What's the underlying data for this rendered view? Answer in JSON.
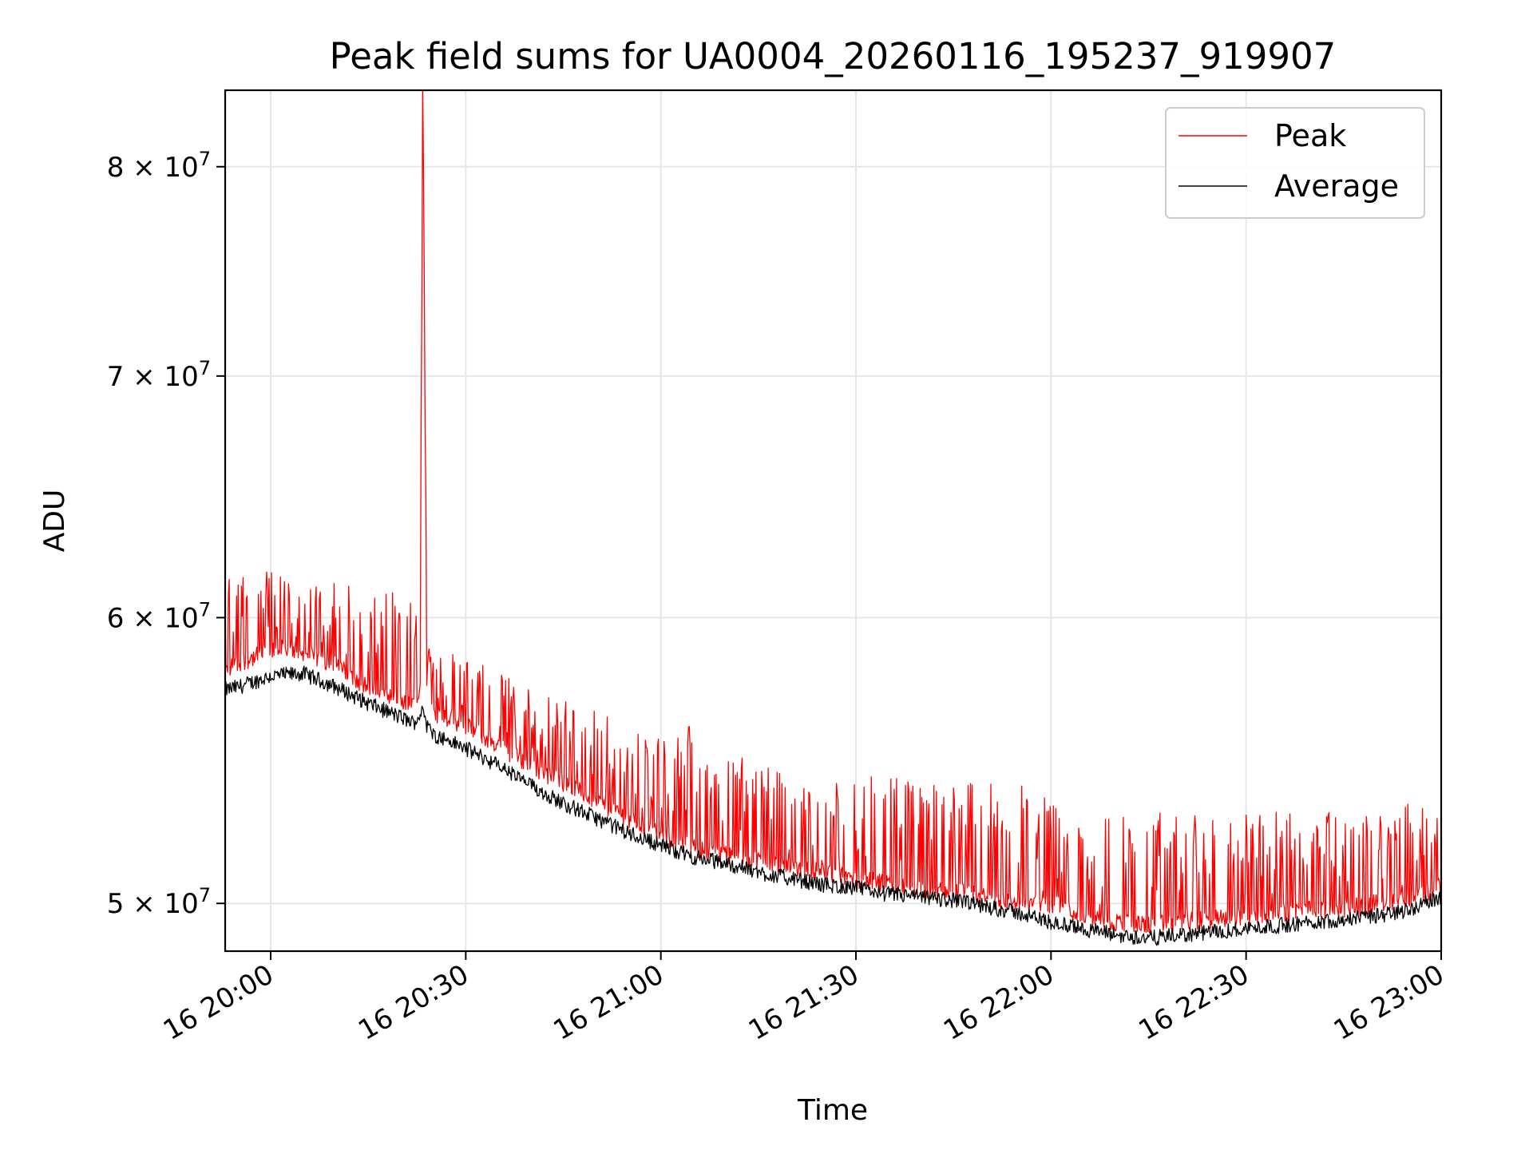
{
  "chart_data": {
    "type": "line",
    "title": "Peak field sums for UA0004_20260116_195237_919907",
    "xlabel": "Time",
    "ylabel": "ADU",
    "yscale": "log",
    "grid": true,
    "legend_position": "top-right",
    "x_range_minutes": [
      -7,
      180
    ],
    "y_range": [
      48500000,
      84000000
    ],
    "x_ticks": [
      {
        "minute": 0,
        "label": "16 20:00"
      },
      {
        "minute": 30,
        "label": "16 20:30"
      },
      {
        "minute": 60,
        "label": "16 21:00"
      },
      {
        "minute": 90,
        "label": "16 21:30"
      },
      {
        "minute": 120,
        "label": "16 22:00"
      },
      {
        "minute": 150,
        "label": "16 22:30"
      },
      {
        "minute": 180,
        "label": "16 23:00"
      }
    ],
    "y_ticks": [
      {
        "value": 50000000,
        "mantissa": "5",
        "exponent": "7"
      },
      {
        "value": 60000000,
        "mantissa": "6",
        "exponent": "7"
      },
      {
        "value": 70000000,
        "mantissa": "7",
        "exponent": "7"
      },
      {
        "value": 80000000,
        "mantissa": "8",
        "exponent": "7"
      }
    ],
    "x_axis_note": "minutes relative to 16 20:00",
    "series": [
      {
        "name": "Peak",
        "color": "#ff0000",
        "x": [
          -7,
          -5,
          0,
          5,
          10,
          15,
          20,
          22,
          23,
          23.4,
          24,
          25,
          30,
          35,
          40,
          45,
          50,
          55,
          60,
          65,
          70,
          75,
          80,
          85,
          90,
          95,
          100,
          105,
          110,
          115,
          120,
          125,
          130,
          135,
          140,
          145,
          150,
          155,
          160,
          165,
          170,
          175,
          180
        ],
        "baseline": [
          58000000,
          58300000,
          58700000,
          58700000,
          58200000,
          57400000,
          56800000,
          56700000,
          57500000,
          84000000,
          57000000,
          56500000,
          56000000,
          55300000,
          54600000,
          54000000,
          53400000,
          52800000,
          52200000,
          51800000,
          51600000,
          51400000,
          51200000,
          51000000,
          50800000,
          50600000,
          50400000,
          50400000,
          50200000,
          50000000,
          50000000,
          49600000,
          49400000,
          49300000,
          49400000,
          49500000,
          49600000,
          49700000,
          49800000,
          49800000,
          50000000,
          50200000,
          50500000
        ],
        "peak_upper": [
          62000000,
          62000000,
          62000000,
          61000000,
          61500000,
          61000000,
          61000000,
          60500000,
          60500000,
          84000000,
          59500000,
          59000000,
          58500000,
          58000000,
          57500000,
          57000000,
          56500000,
          56000000,
          55500000,
          56200000,
          55000000,
          54800000,
          54500000,
          54000000,
          54000000,
          54500000,
          54000000,
          54000000,
          54000000,
          54000000,
          53500000,
          53000000,
          53000000,
          53000000,
          53000000,
          53000000,
          53000000,
          53000000,
          53000000,
          53000000,
          53000000,
          53500000,
          53000000
        ]
      },
      {
        "name": "Average",
        "color": "#000000",
        "x": [
          -7,
          -5,
          0,
          5,
          10,
          15,
          20,
          22,
          23,
          23.4,
          24,
          25,
          30,
          35,
          40,
          45,
          50,
          55,
          60,
          65,
          70,
          75,
          80,
          85,
          90,
          95,
          100,
          105,
          110,
          115,
          120,
          125,
          130,
          135,
          140,
          145,
          150,
          155,
          160,
          165,
          170,
          175,
          180
        ],
        "values": [
          57300000,
          57400000,
          57800000,
          57900000,
          57400000,
          56800000,
          56300000,
          56100000,
          56400000,
          56800000,
          56000000,
          55700000,
          55200000,
          54600000,
          53900000,
          53300000,
          52800000,
          52300000,
          51900000,
          51500000,
          51300000,
          51000000,
          50800000,
          50600000,
          50500000,
          50300000,
          50200000,
          50100000,
          49900000,
          49700000,
          49400000,
          49200000,
          49000000,
          48900000,
          49000000,
          49100000,
          49200000,
          49300000,
          49400000,
          49500000,
          49600000,
          49800000,
          50200000
        ]
      }
    ]
  }
}
